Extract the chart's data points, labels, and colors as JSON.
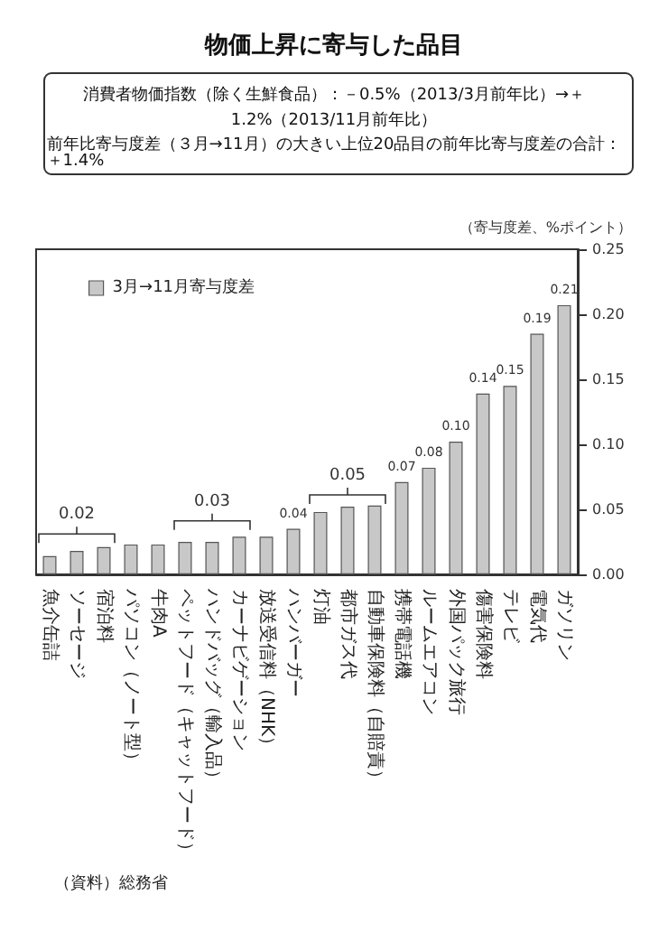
{
  "chart_data": {
    "type": "bar",
    "title": "物価上昇に寄与した品目",
    "subtitle": "消費者物価指数（除く生鮮食品）：－0.5%（2013/3月前年比）→＋1.2%（2013/11月前年比）",
    "ylabel": "（寄与度差、%ポイント）",
    "categories": [
      "魚介缶詰",
      "ソーセージ",
      "宿泊料",
      "パソコン（ノート型）",
      "牛肉A",
      "ペットフード（キャットフード）",
      "ハンドバッグ（輸入品）",
      "カーナビゲーション",
      "放送受信料（NHK）",
      "ハンバーガー",
      "灯油",
      "都市ガス代",
      "自動車保険料（自賠責）",
      "携帯電話機",
      "ルームエアコン",
      "外国パック旅行",
      "傷害保険料",
      "テレビ",
      "電気代",
      "ガソリン"
    ],
    "series": [
      {
        "name": "3月→11月寄与度差",
        "color": "#c8c8c8",
        "values": [
          0.014,
          0.018,
          0.021,
          0.023,
          0.023,
          0.025,
          0.025,
          0.029,
          0.029,
          0.035,
          0.048,
          0.052,
          0.053,
          0.071,
          0.082,
          0.102,
          0.139,
          0.145,
          0.185,
          0.207
        ],
        "value_labels": [
          null,
          null,
          null,
          null,
          null,
          null,
          null,
          null,
          null,
          "0.04",
          null,
          null,
          null,
          "0.07",
          "0.08",
          "0.10",
          "0.14",
          "0.15",
          "0.19",
          "0.21"
        ]
      }
    ],
    "ylim": [
      0,
      0.25
    ],
    "yticks": [
      {
        "value": 0,
        "label": "0.00"
      },
      {
        "value": 0.05,
        "label": "0.05"
      },
      {
        "value": 0.1,
        "label": "0.10"
      },
      {
        "value": 0.15,
        "label": "0.15"
      },
      {
        "value": 0.2,
        "label": "0.20"
      },
      {
        "value": 0.25,
        "label": "0.25"
      }
    ],
    "grid": false,
    "legend": "top left",
    "annotations": [
      "前年比寄与度差（３月→11月）の大きい上位20品目の前年比寄与度差の合計：＋1.4%",
      {
        "text": "0.02",
        "x": "ソーセージ",
        "y": 0.02
      },
      {
        "text": "0.03",
        "x": "ハンドバッグ（輸入品）",
        "y": 0.03
      },
      {
        "text": "0.05",
        "x": "都市ガス代",
        "y": 0.05
      },
      "（資料）総務省"
    ]
  }
}
